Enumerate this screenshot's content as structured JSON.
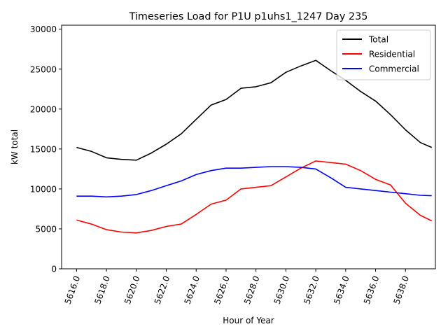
{
  "chart_data": {
    "type": "line",
    "title": "Timeseries Load for P1U p1uhs1_1247  Day 235",
    "xlabel": "Hour of Year",
    "ylabel": "kW total",
    "xlim": [
      5615.0,
      5640.0
    ],
    "ylim": [
      0,
      30500
    ],
    "x_ticks": [
      5616.0,
      5618.0,
      5620.0,
      5622.0,
      5624.0,
      5626.0,
      5628.0,
      5630.0,
      5632.0,
      5634.0,
      5636.0,
      5638.0
    ],
    "x_tick_labels": [
      "5616.0",
      "5618.0",
      "5620.0",
      "5622.0",
      "5624.0",
      "5626.0",
      "5628.0",
      "5630.0",
      "5632.0",
      "5634.0",
      "5636.0",
      "5638.0"
    ],
    "y_ticks": [
      0,
      5000,
      10000,
      15000,
      20000,
      25000,
      30000
    ],
    "y_tick_labels": [
      "0",
      "5000",
      "10000",
      "15000",
      "20000",
      "25000",
      "30000"
    ],
    "grid": false,
    "legend_position": "top-right",
    "x": [
      5616.0,
      5617.0,
      5618.0,
      5619.0,
      5620.0,
      5621.0,
      5622.0,
      5623.0,
      5624.0,
      5625.0,
      5626.0,
      5627.0,
      5628.0,
      5629.0,
      5630.0,
      5631.0,
      5632.0,
      5633.0,
      5634.0,
      5635.0,
      5636.0,
      5637.0,
      5638.0,
      5639.0,
      5639.75
    ],
    "series": [
      {
        "name": "Total",
        "color": "#000000",
        "values": [
          15200,
          14700,
          13900,
          13700,
          13600,
          14500,
          15600,
          16900,
          18700,
          20500,
          21200,
          22600,
          22800,
          23300,
          24600,
          25400,
          26100,
          24800,
          23600,
          22200,
          21000,
          19300,
          17400,
          15800,
          15200
        ]
      },
      {
        "name": "Residential",
        "color": "#ff0000",
        "values": [
          6100,
          5600,
          4900,
          4600,
          4500,
          4800,
          5300,
          5600,
          6800,
          8100,
          8600,
          10000,
          10200,
          10400,
          11500,
          12600,
          13500,
          13300,
          13100,
          12300,
          11200,
          10500,
          8200,
          6700,
          6000
        ]
      },
      {
        "name": "Commercial",
        "color": "#0000ff",
        "values": [
          9100,
          9100,
          9000,
          9100,
          9300,
          9800,
          10400,
          11000,
          11800,
          12300,
          12600,
          12600,
          12700,
          12800,
          12800,
          12700,
          12500,
          11400,
          10200,
          10000,
          9800,
          9600,
          9400,
          9200,
          9150
        ]
      }
    ]
  }
}
